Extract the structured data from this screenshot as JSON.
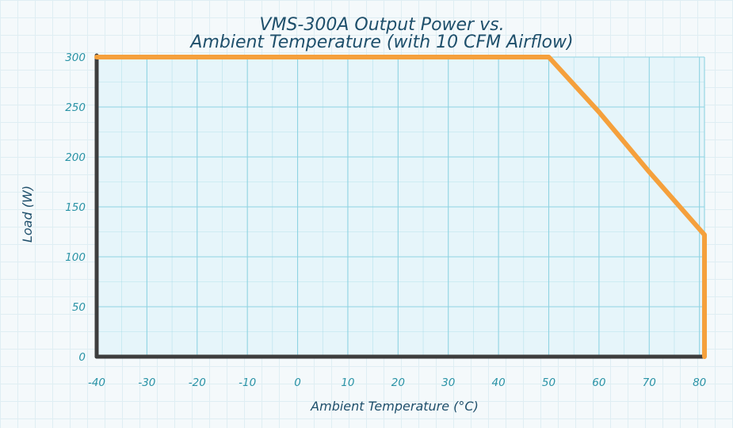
{
  "chart_data": {
    "type": "line",
    "title_lines": [
      "VMS-300A Output Power vs.",
      "Ambient Temperature (with 10 CFM Airflow)"
    ],
    "xlabel": "Ambient Temperature (°C)",
    "ylabel": "Load (W)",
    "xlim": [
      -40,
      81
    ],
    "ylim": [
      0,
      300
    ],
    "x_ticks": [
      -40,
      -30,
      -20,
      -10,
      0,
      10,
      20,
      30,
      40,
      50,
      60,
      70,
      80
    ],
    "y_ticks": [
      0,
      50,
      100,
      150,
      200,
      250,
      300
    ],
    "grid": true,
    "series": [
      {
        "x": [
          -40,
          50,
          60,
          70,
          81,
          81
        ],
        "y": [
          300,
          300,
          245,
          185,
          122,
          0
        ]
      }
    ]
  },
  "colors": {
    "series": "#f5a03c",
    "axis": "#3d3d3d",
    "grid": "#8fd3e2",
    "plot_bg": "#e6f5fa",
    "tick_text": "#2a93a6",
    "title": "#1e4f6b"
  }
}
